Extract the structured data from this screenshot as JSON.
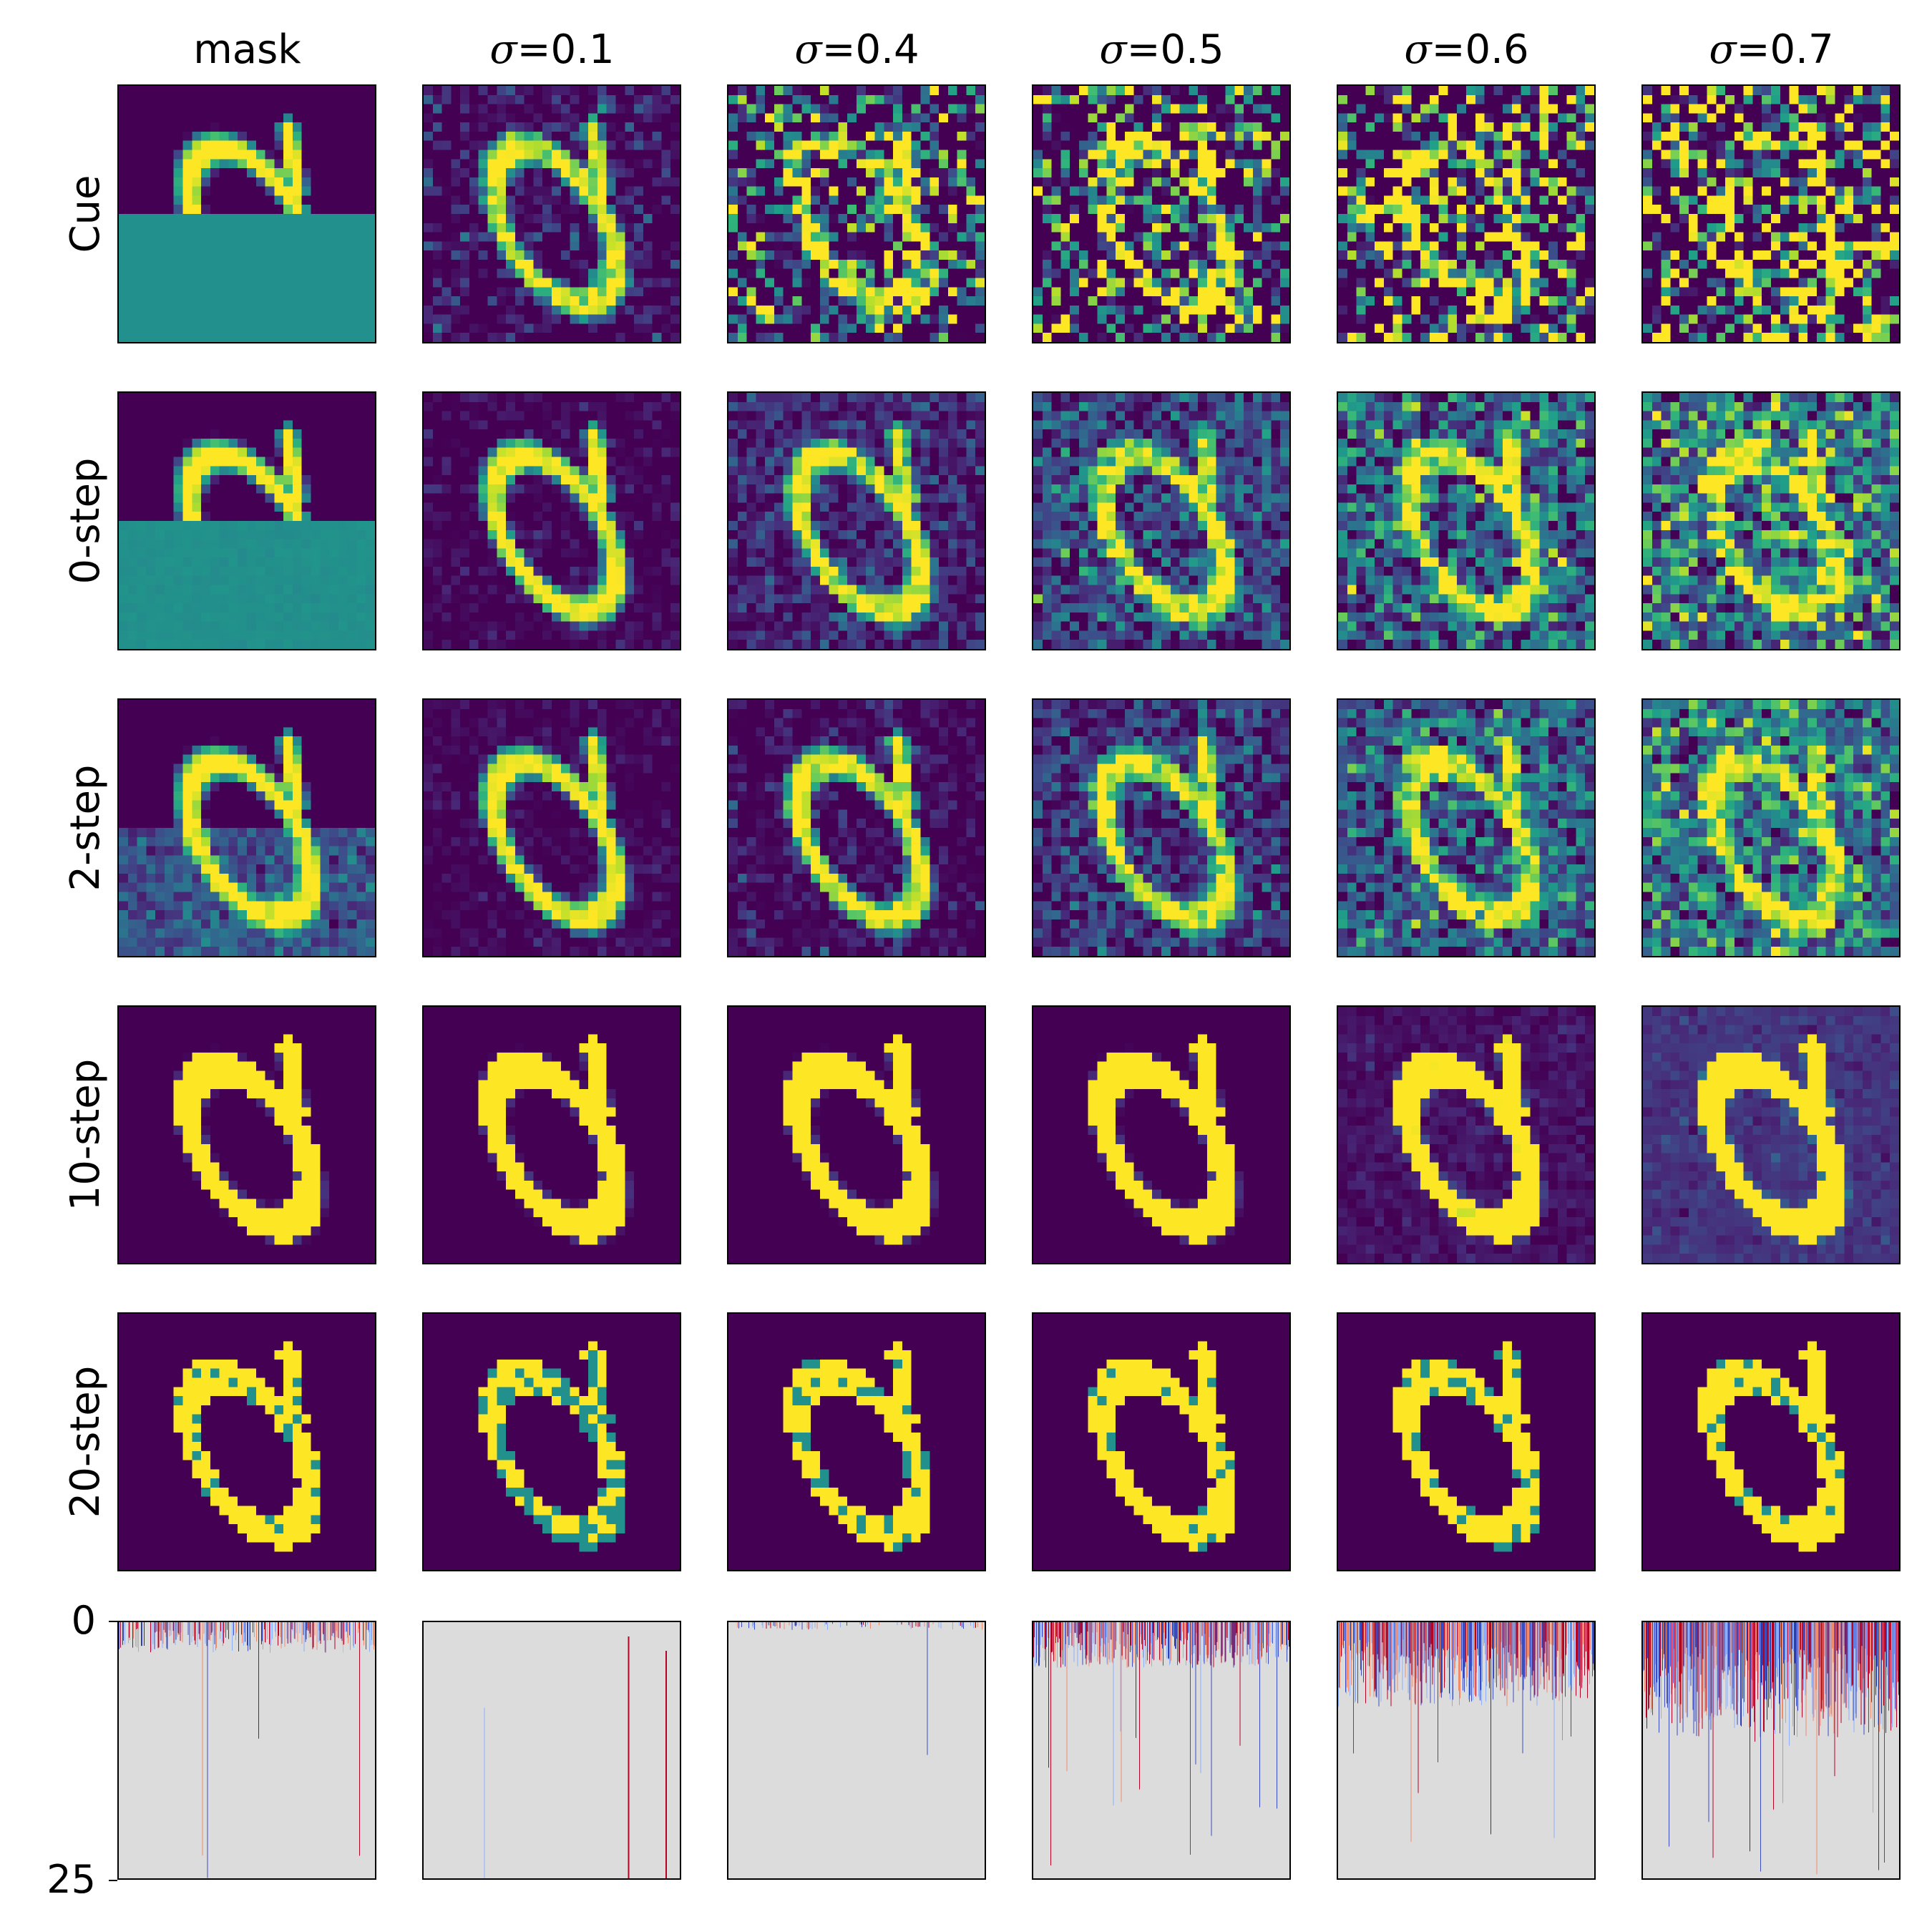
{
  "figure": {
    "columns": [
      {
        "label": "mask"
      },
      {
        "symbol": "σ",
        "label": "=0.1"
      },
      {
        "symbol": "σ",
        "label": "=0.4"
      },
      {
        "symbol": "σ",
        "label": "=0.5"
      },
      {
        "symbol": "σ",
        "label": "=0.6"
      },
      {
        "symbol": "σ",
        "label": "=0.7"
      }
    ],
    "rows": [
      {
        "label": "Cue"
      },
      {
        "label": "0-step"
      },
      {
        "label": "2-step"
      },
      {
        "label": "10-step"
      },
      {
        "label": "20-step"
      }
    ],
    "bottom_axis": {
      "ticks": [
        "0",
        "25"
      ],
      "range": [
        0,
        25
      ]
    },
    "colors": {
      "viridis_low": "#440154",
      "viridis_mid": "#21918c",
      "viridis_high": "#fde725",
      "diff_background": "#dcdcdc",
      "diff_positive": "#b40426",
      "diff_negative": "#3b4cc0"
    }
  }
}
